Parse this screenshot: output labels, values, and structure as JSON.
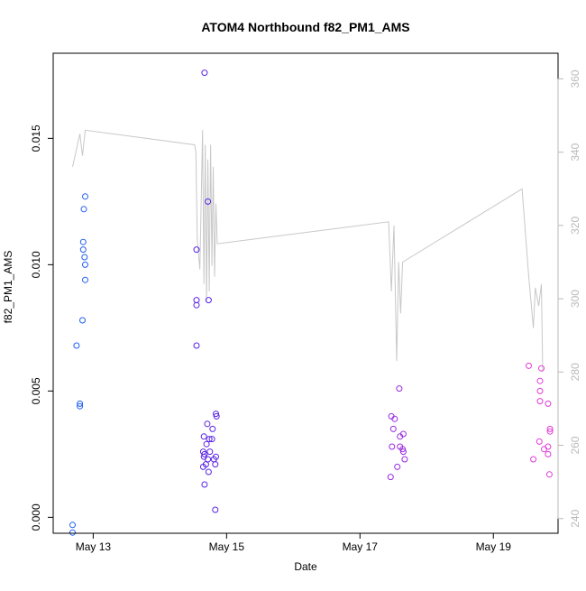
{
  "chart_data": {
    "type": "scatter",
    "title": "ATOM4 Northbound f82_PM1_AMS",
    "xlabel": "Date",
    "ylabel": "f82_PM1_AMS",
    "x_unit": "days since May 13 00:00",
    "x_ticks": [
      {
        "value": 0,
        "label": "May 13"
      },
      {
        "value": 2,
        "label": "May 15"
      },
      {
        "value": 4,
        "label": "May 17"
      },
      {
        "value": 6,
        "label": "May 19"
      }
    ],
    "xlim": [
      -0.6,
      6.97
    ],
    "ylim": [
      -0.00063,
      0.01837
    ],
    "y_ticks": [
      0.0,
      0.005,
      0.01,
      0.015
    ],
    "y_tick_labels": [
      "0.000",
      "0.005",
      "0.010",
      "0.015"
    ],
    "y2lim": [
      236,
      367
    ],
    "y2_ticks": [
      240,
      260,
      280,
      300,
      320,
      340,
      360
    ],
    "y2_tick_labels": [
      "240",
      "260",
      "280",
      "300",
      "320",
      "340",
      "360"
    ],
    "grid": false,
    "legend": "none",
    "colors": {
      "line": "#c8c8c8",
      "axis": "#000000",
      "right_axis": "#b9b9b9",
      "points_blue": "#1f5ef0",
      "points_indigo": "#5a24e6",
      "points_purple": "#9a2be0",
      "points_magenta": "#e03bd6"
    },
    "series": [
      {
        "kind": "points",
        "color_key": "points_blue",
        "points": [
          {
            "x": -0.31,
            "y": -0.0003
          },
          {
            "x": -0.31,
            "y": -0.0006
          },
          {
            "x": -0.25,
            "y": 0.0068
          },
          {
            "x": -0.2,
            "y": 0.0045
          },
          {
            "x": -0.2,
            "y": 0.0044
          },
          {
            "x": -0.16,
            "y": 0.0078
          },
          {
            "x": -0.14,
            "y": 0.0122
          },
          {
            "x": -0.12,
            "y": 0.0127
          },
          {
            "x": -0.15,
            "y": 0.0109
          },
          {
            "x": -0.15,
            "y": 0.0106
          },
          {
            "x": -0.13,
            "y": 0.0103
          },
          {
            "x": -0.12,
            "y": 0.01
          },
          {
            "x": -0.12,
            "y": 0.0094
          }
        ]
      },
      {
        "kind": "points",
        "color_key": "points_indigo",
        "points": [
          {
            "x": 1.55,
            "y": 0.0106
          },
          {
            "x": 1.55,
            "y": 0.0086
          },
          {
            "x": 1.55,
            "y": 0.0084
          },
          {
            "x": 1.55,
            "y": 0.0068
          },
          {
            "x": 1.67,
            "y": 0.0176
          },
          {
            "x": 1.72,
            "y": 0.0125
          },
          {
            "x": 1.73,
            "y": 0.0086
          },
          {
            "x": 1.71,
            "y": 0.0037
          },
          {
            "x": 1.66,
            "y": 0.0032
          },
          {
            "x": 1.7,
            "y": 0.0029
          },
          {
            "x": 1.74,
            "y": 0.0031
          },
          {
            "x": 1.65,
            "y": 0.0026
          },
          {
            "x": 1.67,
            "y": 0.0025
          },
          {
            "x": 1.75,
            "y": 0.0026
          },
          {
            "x": 1.66,
            "y": 0.0024
          },
          {
            "x": 1.72,
            "y": 0.0023
          },
          {
            "x": 1.69,
            "y": 0.0021
          },
          {
            "x": 1.65,
            "y": 0.002
          },
          {
            "x": 1.73,
            "y": 0.0018
          },
          {
            "x": 1.67,
            "y": 0.0013
          },
          {
            "x": 1.78,
            "y": 0.0031
          },
          {
            "x": 1.79,
            "y": 0.0035
          },
          {
            "x": 1.84,
            "y": 0.0041
          },
          {
            "x": 1.85,
            "y": 0.004
          },
          {
            "x": 1.81,
            "y": 0.0023
          },
          {
            "x": 1.84,
            "y": 0.0024
          },
          {
            "x": 1.83,
            "y": 0.0021
          },
          {
            "x": 1.83,
            "y": 0.0003
          }
        ]
      },
      {
        "kind": "points",
        "color_key": "points_purple",
        "points": [
          {
            "x": 4.47,
            "y": 0.004
          },
          {
            "x": 4.52,
            "y": 0.0039
          },
          {
            "x": 4.5,
            "y": 0.0035
          },
          {
            "x": 4.59,
            "y": 0.0051
          },
          {
            "x": 4.6,
            "y": 0.0032
          },
          {
            "x": 4.65,
            "y": 0.0033
          },
          {
            "x": 4.48,
            "y": 0.0028
          },
          {
            "x": 4.6,
            "y": 0.0028
          },
          {
            "x": 4.64,
            "y": 0.0027
          },
          {
            "x": 4.65,
            "y": 0.0026
          },
          {
            "x": 4.67,
            "y": 0.0023
          },
          {
            "x": 4.56,
            "y": 0.002
          },
          {
            "x": 4.46,
            "y": 0.0016
          }
        ]
      },
      {
        "kind": "points",
        "color_key": "points_magenta",
        "points": [
          {
            "x": 6.53,
            "y": 0.006
          },
          {
            "x": 6.72,
            "y": 0.0059
          },
          {
            "x": 6.7,
            "y": 0.0054
          },
          {
            "x": 6.7,
            "y": 0.005
          },
          {
            "x": 6.7,
            "y": 0.0046
          },
          {
            "x": 6.82,
            "y": 0.0045
          },
          {
            "x": 6.85,
            "y": 0.0035
          },
          {
            "x": 6.85,
            "y": 0.0034
          },
          {
            "x": 6.69,
            "y": 0.003
          },
          {
            "x": 6.82,
            "y": 0.0028
          },
          {
            "x": 6.76,
            "y": 0.0027
          },
          {
            "x": 6.82,
            "y": 0.0025
          },
          {
            "x": 6.6,
            "y": 0.0023
          },
          {
            "x": 6.84,
            "y": 0.0017
          }
        ]
      },
      {
        "kind": "line",
        "axis": "right",
        "color_key": "line",
        "points": [
          {
            "x": -0.31,
            "y": 336
          },
          {
            "x": -0.2,
            "y": 345
          },
          {
            "x": -0.16,
            "y": 339
          },
          {
            "x": -0.12,
            "y": 346
          },
          {
            "x": 1.52,
            "y": 342
          },
          {
            "x": 1.54,
            "y": 340
          },
          {
            "x": 1.56,
            "y": 316
          },
          {
            "x": 1.6,
            "y": 308
          },
          {
            "x": 1.64,
            "y": 346
          },
          {
            "x": 1.66,
            "y": 304
          },
          {
            "x": 1.68,
            "y": 342
          },
          {
            "x": 1.7,
            "y": 299
          },
          {
            "x": 1.72,
            "y": 338
          },
          {
            "x": 1.74,
            "y": 302
          },
          {
            "x": 1.76,
            "y": 342
          },
          {
            "x": 1.78,
            "y": 309
          },
          {
            "x": 1.8,
            "y": 336
          },
          {
            "x": 1.82,
            "y": 306
          },
          {
            "x": 1.84,
            "y": 326
          },
          {
            "x": 1.86,
            "y": 315
          },
          {
            "x": 4.43,
            "y": 321
          },
          {
            "x": 4.47,
            "y": 302
          },
          {
            "x": 4.51,
            "y": 320
          },
          {
            "x": 4.55,
            "y": 283
          },
          {
            "x": 4.58,
            "y": 310
          },
          {
            "x": 4.61,
            "y": 296
          },
          {
            "x": 4.64,
            "y": 310
          },
          {
            "x": 6.43,
            "y": 330
          },
          {
            "x": 6.53,
            "y": 306
          },
          {
            "x": 6.6,
            "y": 292
          },
          {
            "x": 6.63,
            "y": 303
          },
          {
            "x": 6.68,
            "y": 298
          },
          {
            "x": 6.72,
            "y": 304
          },
          {
            "x": 6.74,
            "y": 280
          }
        ]
      }
    ]
  }
}
